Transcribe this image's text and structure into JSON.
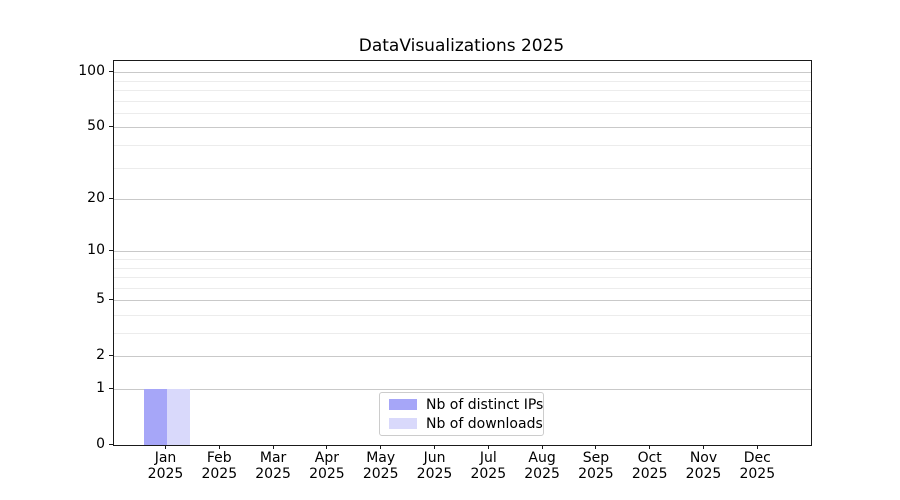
{
  "chart_data": {
    "type": "bar",
    "title": "DataVisualizations 2025",
    "categories": [
      "Jan",
      "Feb",
      "Mar",
      "Apr",
      "May",
      "Jun",
      "Jul",
      "Aug",
      "Sep",
      "Oct",
      "Nov",
      "Dec"
    ],
    "category_sublabel": "2025",
    "series": [
      {
        "name": "Nb of distinct IPs",
        "color": "#a6a6f8",
        "values": [
          1,
          0,
          0,
          0,
          0,
          0,
          0,
          0,
          0,
          0,
          0,
          0
        ]
      },
      {
        "name": "Nb of downloads",
        "color": "#d9d9fb",
        "values": [
          1,
          0,
          0,
          0,
          0,
          0,
          0,
          0,
          0,
          0,
          0,
          0
        ]
      }
    ],
    "xlabel": "",
    "ylabel": "",
    "yscale": "log1p",
    "ylim": [
      0,
      115
    ],
    "yticks": [
      0,
      1,
      2,
      5,
      10,
      20,
      50,
      100
    ],
    "yminorticks": [
      3,
      4,
      6,
      7,
      8,
      9,
      30,
      40,
      60,
      70,
      80,
      90
    ],
    "grid": "both",
    "legend": {
      "position": "lower-center"
    },
    "colors": {
      "grid_major": "#c9c9c9",
      "grid_minor": "#ececec",
      "axis": "#1a1a1a",
      "text": "#000000",
      "legend_border": "#cccccc",
      "background": "#ffffff"
    }
  }
}
